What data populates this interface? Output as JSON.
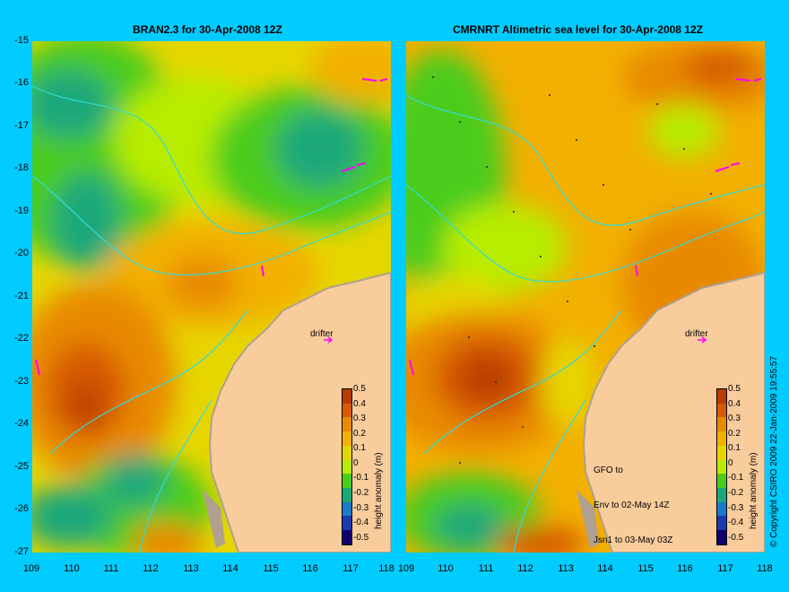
{
  "panels": [
    {
      "title": "BRAN2.3  for 30-Apr-2008 12Z",
      "drifter_label": "drifter"
    },
    {
      "title": "CMRNRT Altimetric sea level  for 30-Apr-2008 12Z",
      "drifter_label": "drifter",
      "gfo_note": [
        "GFO to",
        "Env to 02-May 14Z",
        "Jsn1 to 03-May 03Z"
      ]
    }
  ],
  "axes": {
    "y_ticks": [
      "-15",
      "-16",
      "-17",
      "-18",
      "-19",
      "-20",
      "-21",
      "-22",
      "-23",
      "-24",
      "-25",
      "-26",
      "-27"
    ],
    "x_ticks": [
      "109",
      "110",
      "111",
      "112",
      "113",
      "114",
      "115",
      "116",
      "117",
      "118"
    ]
  },
  "colorbar": {
    "label": "height anomaly (m)",
    "ticks": [
      "0.5",
      "0.4",
      "0.3",
      "0.2",
      "0.1",
      "0",
      "-0.1",
      "-0.2",
      "-0.3",
      "-0.4",
      "-0.5"
    ],
    "colors": [
      "#b83c00",
      "#d65a00",
      "#e88a00",
      "#f2b000",
      "#e6d600",
      "#b8ec00",
      "#4ccc1a",
      "#1aa87a",
      "#1a7acc",
      "#1a3ab0",
      "#100070"
    ]
  },
  "copyright": "© Copyright CSIRO 2009  22-Jan-2009 19:55:57",
  "colors": {
    "background": "#00ccff",
    "land": "#f9cc9c",
    "coastline": "#b0a090",
    "isobath": "#30dcd8",
    "drifter_arrow": "#ff00ff"
  }
}
